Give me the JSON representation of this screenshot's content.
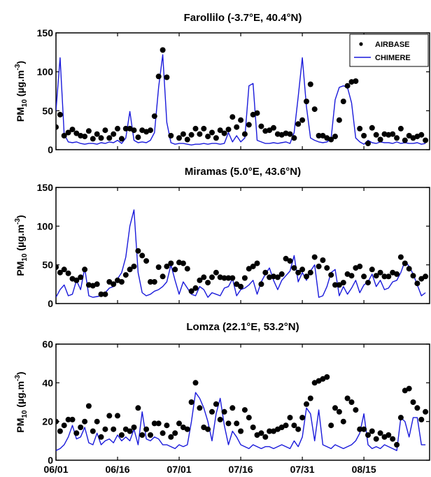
{
  "chart_data": [
    {
      "type": "line",
      "title": "Farollilo  (-3.7°E, 40.4°N)",
      "ylabel": "PM10 (µg.m-3)",
      "ylim": [
        0,
        150
      ],
      "yticks": [
        0,
        50,
        100,
        150
      ],
      "xlim": [
        0,
        91
      ],
      "xticks": [
        "06/01",
        "06/16",
        "07/01",
        "07/16",
        "07/31",
        "08/15"
      ],
      "legend": {
        "position": "top-right",
        "entries": [
          "AIRBASE",
          "CHIMERE"
        ]
      },
      "series": [
        {
          "name": "AIRBASE",
          "style": "dots",
          "x": [
            0,
            1,
            2,
            3,
            4,
            5,
            6,
            7,
            8,
            9,
            10,
            11,
            12,
            13,
            14,
            15,
            16,
            17,
            18,
            19,
            20,
            21,
            22,
            23,
            24,
            25,
            26,
            27,
            28,
            30,
            31,
            32,
            33,
            34,
            35,
            36,
            37,
            38,
            39,
            40,
            41,
            42,
            43,
            44,
            45,
            46,
            47,
            48,
            49,
            50,
            51,
            52,
            53,
            54,
            55,
            56,
            57,
            58,
            59,
            60,
            61,
            62,
            63,
            64,
            65,
            66,
            67,
            68,
            69,
            70,
            71,
            72,
            73,
            74,
            75,
            76,
            77,
            78,
            79,
            80,
            81,
            82,
            83,
            84,
            85,
            86,
            87,
            88,
            89,
            90
          ],
          "values": [
            29,
            45,
            18,
            22,
            26,
            21,
            18,
            17,
            24,
            14,
            20,
            15,
            25,
            15,
            20,
            27,
            14,
            27,
            27,
            25,
            16,
            25,
            23,
            25,
            43,
            94,
            128,
            93,
            18,
            15,
            20,
            13,
            19,
            27,
            20,
            27,
            17,
            22,
            15,
            25,
            21,
            26,
            42,
            29,
            38,
            20,
            32,
            45,
            47,
            30,
            24,
            25,
            28,
            20,
            19,
            21,
            20,
            15,
            33,
            38,
            62,
            84,
            52,
            18,
            18,
            15,
            13,
            17,
            38,
            62,
            82,
            87,
            88,
            27,
            18,
            8,
            28,
            19,
            13,
            20,
            19,
            20,
            15,
            27,
            12,
            18,
            15,
            17,
            19,
            12
          ]
        },
        {
          "name": "CHIMERE",
          "style": "line",
          "x": [
            0,
            1,
            2,
            3,
            4,
            5,
            6,
            7,
            8,
            9,
            10,
            11,
            12,
            13,
            14,
            15,
            16,
            17,
            18,
            19,
            20,
            21,
            22,
            23,
            24,
            25,
            26,
            27,
            28,
            29,
            30,
            31,
            32,
            33,
            34,
            35,
            36,
            37,
            38,
            39,
            40,
            41,
            42,
            43,
            44,
            45,
            46,
            47,
            48,
            49,
            50,
            51,
            52,
            53,
            54,
            55,
            56,
            57,
            58,
            59,
            60,
            61,
            62,
            63,
            64,
            65,
            66,
            67,
            68,
            69,
            70,
            71,
            72,
            73,
            74,
            75,
            76,
            77,
            78,
            79,
            80,
            81,
            82,
            83,
            84,
            85,
            86,
            87,
            88,
            89,
            90
          ],
          "values": [
            50,
            118,
            20,
            10,
            9,
            10,
            8,
            7,
            8,
            8,
            7,
            9,
            8,
            10,
            9,
            12,
            8,
            15,
            49,
            12,
            9,
            10,
            9,
            12,
            22,
            80,
            122,
            35,
            9,
            7,
            8,
            8,
            7,
            6,
            7,
            7,
            8,
            7,
            8,
            8,
            7,
            8,
            22,
            10,
            18,
            10,
            15,
            82,
            85,
            12,
            10,
            8,
            8,
            9,
            8,
            9,
            10,
            8,
            22,
            68,
            118,
            55,
            15,
            12,
            10,
            9,
            10,
            14,
            64,
            80,
            82,
            80,
            60,
            15,
            10,
            7,
            12,
            9,
            8,
            10,
            9,
            9,
            8,
            10,
            8,
            9,
            8,
            8,
            9,
            7,
            8
          ]
        }
      ]
    },
    {
      "type": "line",
      "title": "Miramas (5.0°E, 43.6°N)",
      "ylabel": "PM10 (µg.m-3)",
      "ylim": [
        0,
        150
      ],
      "yticks": [
        0,
        50,
        100,
        150
      ],
      "xlim": [
        0,
        91
      ],
      "xticks": [
        "06/01",
        "06/16",
        "07/01",
        "07/16",
        "07/31",
        "08/15"
      ],
      "series": [
        {
          "name": "AIRBASE",
          "style": "dots",
          "x": [
            0,
            1,
            2,
            3,
            4,
            5,
            6,
            7,
            8,
            9,
            10,
            11,
            12,
            13,
            14,
            15,
            16,
            17,
            18,
            19,
            20,
            21,
            22,
            23,
            24,
            25,
            26,
            27,
            28,
            29,
            30,
            31,
            32,
            33,
            34,
            35,
            36,
            37,
            38,
            39,
            40,
            41,
            42,
            43,
            44,
            45,
            46,
            47,
            48,
            49,
            50,
            51,
            52,
            53,
            54,
            55,
            56,
            57,
            58,
            59,
            60,
            61,
            62,
            63,
            64,
            65,
            66,
            67,
            68,
            69,
            70,
            71,
            72,
            73,
            74,
            75,
            76,
            77,
            78,
            79,
            80,
            81,
            82,
            83,
            84,
            85,
            86,
            87,
            88,
            89,
            90
          ],
          "values": [
            47,
            40,
            44,
            39,
            32,
            30,
            34,
            44,
            24,
            23,
            25,
            12,
            12,
            28,
            25,
            30,
            28,
            37,
            44,
            48,
            68,
            62,
            55,
            28,
            28,
            47,
            35,
            48,
            52,
            44,
            53,
            52,
            45,
            16,
            20,
            30,
            34,
            27,
            34,
            40,
            34,
            33,
            33,
            33,
            25,
            22,
            33,
            45,
            48,
            52,
            25,
            40,
            34,
            35,
            34,
            38,
            58,
            55,
            46,
            40,
            44,
            35,
            40,
            60,
            48,
            56,
            46,
            37,
            24,
            24,
            27,
            38,
            36,
            46,
            48,
            35,
            27,
            44,
            36,
            40,
            35,
            35,
            40,
            38,
            60,
            52,
            45,
            36,
            26,
            32,
            35
          ]
        },
        {
          "name": "CHIMERE",
          "style": "line",
          "x": [
            0,
            1,
            2,
            3,
            4,
            5,
            6,
            7,
            8,
            9,
            10,
            11,
            12,
            13,
            14,
            15,
            16,
            17,
            18,
            19,
            20,
            21,
            22,
            23,
            24,
            25,
            26,
            27,
            28,
            29,
            30,
            31,
            32,
            33,
            34,
            35,
            36,
            37,
            38,
            39,
            40,
            41,
            42,
            43,
            44,
            45,
            46,
            47,
            48,
            49,
            50,
            51,
            52,
            53,
            54,
            55,
            56,
            57,
            58,
            59,
            60,
            61,
            62,
            63,
            64,
            65,
            66,
            67,
            68,
            69,
            70,
            71,
            72,
            73,
            74,
            75,
            76,
            77,
            78,
            79,
            80,
            81,
            82,
            83,
            84,
            85,
            86,
            87,
            88,
            89,
            90
          ],
          "values": [
            8,
            18,
            24,
            10,
            12,
            30,
            18,
            46,
            10,
            8,
            9,
            10,
            14,
            20,
            22,
            32,
            40,
            60,
            100,
            121,
            40,
            14,
            10,
            12,
            16,
            18,
            22,
            28,
            50,
            30,
            12,
            28,
            20,
            12,
            10,
            22,
            18,
            8,
            14,
            12,
            10,
            20,
            22,
            32,
            10,
            18,
            20,
            24,
            30,
            12,
            28,
            38,
            46,
            30,
            18,
            30,
            36,
            42,
            62,
            28,
            40,
            30,
            42,
            50,
            8,
            10,
            22,
            40,
            44,
            10,
            22,
            12,
            20,
            30,
            14,
            24,
            28,
            38,
            22,
            30,
            18,
            20,
            28,
            30,
            40,
            55,
            48,
            38,
            24,
            10,
            14
          ]
        }
      ]
    },
    {
      "type": "line",
      "title": "Lomza (22.1°E, 53.2°N)",
      "ylabel": "PM10 (µg.m-3)",
      "ylim": [
        0,
        60
      ],
      "yticks": [
        0,
        20,
        40,
        60
      ],
      "xlim": [
        0,
        91
      ],
      "xticks": [
        "06/01",
        "06/16",
        "07/01",
        "07/16",
        "07/31",
        "08/15"
      ],
      "series": [
        {
          "name": "AIRBASE",
          "style": "dots",
          "x": [
            0,
            1,
            2,
            3,
            4,
            5,
            6,
            7,
            8,
            9,
            10,
            11,
            12,
            13,
            14,
            15,
            16,
            17,
            18,
            19,
            20,
            21,
            22,
            23,
            24,
            25,
            26,
            27,
            28,
            29,
            30,
            31,
            32,
            33,
            34,
            35,
            36,
            37,
            38,
            39,
            40,
            41,
            42,
            43,
            44,
            45,
            46,
            47,
            48,
            49,
            50,
            51,
            52,
            53,
            54,
            55,
            56,
            57,
            58,
            59,
            60,
            61,
            62,
            63,
            64,
            65,
            66,
            67,
            68,
            69,
            70,
            71,
            72,
            73,
            74,
            75,
            76,
            77,
            78,
            79,
            80,
            81,
            82,
            83,
            84,
            85,
            86,
            87,
            88,
            89,
            90
          ],
          "values": [
            20,
            15,
            18,
            21,
            21,
            14,
            17,
            20,
            28,
            15,
            20,
            12,
            16,
            23,
            16,
            23,
            13,
            16,
            15,
            17,
            27,
            13,
            16,
            13,
            19,
            19,
            14,
            18,
            12,
            14,
            19,
            17,
            16,
            30,
            40,
            27,
            17,
            16,
            25,
            29,
            21,
            25,
            19,
            27,
            19,
            15,
            26,
            22,
            17,
            13,
            14,
            12,
            15,
            15,
            16,
            17,
            18,
            22,
            18,
            16,
            22,
            29,
            32,
            40,
            41,
            42,
            43,
            18,
            27,
            25,
            20,
            32,
            30,
            26,
            16,
            16,
            13,
            15,
            11,
            14,
            12,
            13,
            11,
            8,
            22,
            36,
            37,
            30,
            27,
            21,
            25
          ]
        },
        {
          "name": "CHIMERE",
          "style": "line",
          "x": [
            0,
            1,
            2,
            3,
            4,
            5,
            6,
            7,
            8,
            9,
            10,
            11,
            12,
            13,
            14,
            15,
            16,
            17,
            18,
            19,
            20,
            21,
            22,
            23,
            24,
            25,
            26,
            27,
            28,
            29,
            30,
            31,
            32,
            33,
            34,
            35,
            36,
            37,
            38,
            39,
            40,
            41,
            42,
            43,
            44,
            45,
            46,
            47,
            48,
            49,
            50,
            51,
            52,
            53,
            54,
            55,
            56,
            57,
            58,
            59,
            60,
            61,
            62,
            63,
            64,
            65,
            66,
            67,
            68,
            69,
            70,
            71,
            72,
            73,
            74,
            75,
            76,
            77,
            78,
            79,
            80,
            81,
            82,
            83,
            84,
            85,
            86,
            87,
            88,
            89,
            90
          ],
          "values": [
            5,
            6,
            8,
            12,
            18,
            11,
            12,
            17,
            9,
            8,
            14,
            8,
            10,
            11,
            9,
            13,
            10,
            12,
            10,
            16,
            8,
            25,
            11,
            10,
            12,
            11,
            8,
            8,
            7,
            6,
            8,
            7,
            8,
            20,
            35,
            32,
            27,
            20,
            10,
            24,
            32,
            18,
            8,
            15,
            12,
            8,
            7,
            6,
            8,
            7,
            6,
            7,
            7,
            6,
            7,
            8,
            7,
            6,
            10,
            7,
            12,
            27,
            24,
            10,
            26,
            8,
            7,
            6,
            8,
            7,
            6,
            7,
            8,
            10,
            14,
            24,
            8,
            6,
            7,
            6,
            8,
            7,
            6,
            5,
            22,
            20,
            12,
            22,
            22,
            8,
            8
          ]
        }
      ]
    }
  ]
}
